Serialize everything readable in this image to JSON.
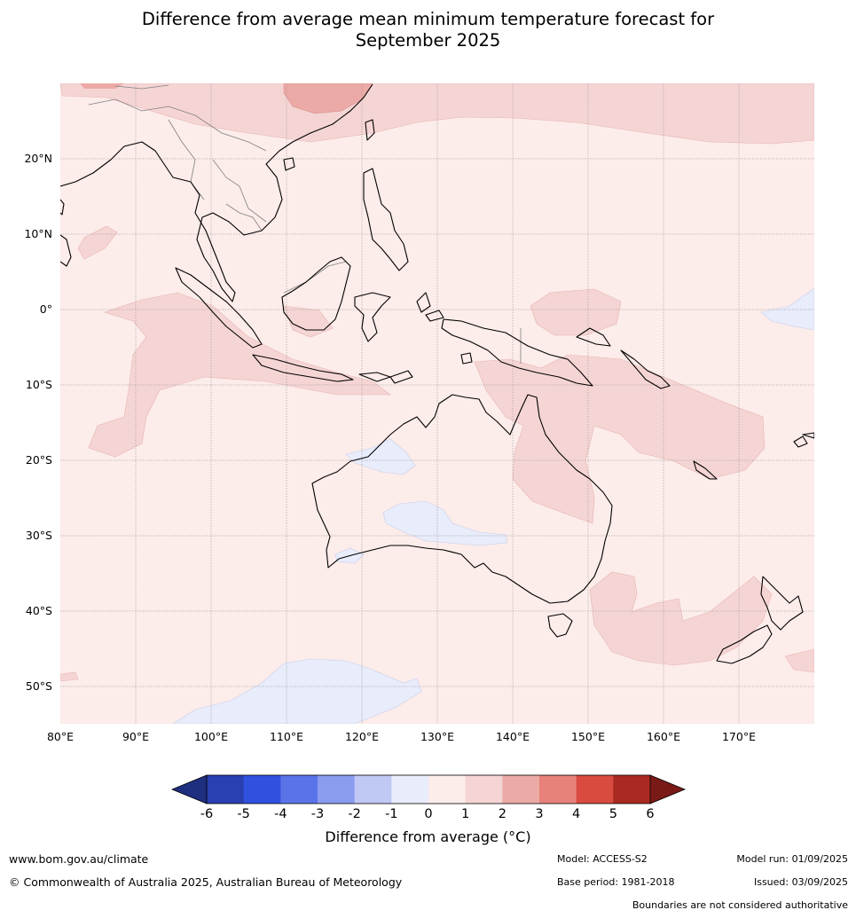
{
  "title": {
    "line1": "Difference from average mean minimum temperature forecast for",
    "line2": "September 2025"
  },
  "map": {
    "projection": "equirectangular",
    "lon_range": [
      80,
      180
    ],
    "lat_range": [
      -55,
      30
    ],
    "lat_ticks": [
      {
        "value": 20,
        "label": "20°N"
      },
      {
        "value": 10,
        "label": "10°N"
      },
      {
        "value": 0,
        "label": "0°"
      },
      {
        "value": -10,
        "label": "10°S"
      },
      {
        "value": -20,
        "label": "20°S"
      },
      {
        "value": -30,
        "label": "30°S"
      },
      {
        "value": -40,
        "label": "40°S"
      },
      {
        "value": -50,
        "label": "50°S"
      }
    ],
    "lon_ticks": [
      {
        "value": 80,
        "label": "80°E"
      },
      {
        "value": 90,
        "label": "90°E"
      },
      {
        "value": 100,
        "label": "100°E"
      },
      {
        "value": 110,
        "label": "110°E"
      },
      {
        "value": 120,
        "label": "120°E"
      },
      {
        "value": 130,
        "label": "130°E"
      },
      {
        "value": 140,
        "label": "140°E"
      },
      {
        "value": 150,
        "label": "150°E"
      },
      {
        "value": 160,
        "label": "160°E"
      },
      {
        "value": 170,
        "label": "170°E"
      }
    ],
    "grid": true,
    "background_anomaly_class": "0 to 1"
  },
  "colorbar": {
    "ticks": [
      "-6",
      "-5",
      "-4",
      "-3",
      "-2",
      "-1",
      "0",
      "1",
      "2",
      "3",
      "4",
      "5",
      "6"
    ],
    "colors": [
      "#2a3fb0",
      "#3050e0",
      "#5b73e8",
      "#8a9cee",
      "#c0c8f4",
      "#e8ecfb",
      "#fcecea",
      "#f5d5d4",
      "#ecaaa6",
      "#e6827b",
      "#d94a3f",
      "#a92a22"
    ],
    "under_color": "#1e2f80",
    "over_color": "#7a1a16",
    "label": "Difference from average (°C)"
  },
  "footer": {
    "website": "www.bom.gov.au/climate",
    "copyright": "© Commonwealth of Australia 2025, Australian Bureau of Meteorology",
    "model": "Model: ACCESS-S2",
    "base_period": "Base period: 1981-2018",
    "model_run": "Model run: 01/09/2025",
    "issued": "Issued: 03/09/2025",
    "disclaimer": "Boundaries are not considered authoritative"
  }
}
